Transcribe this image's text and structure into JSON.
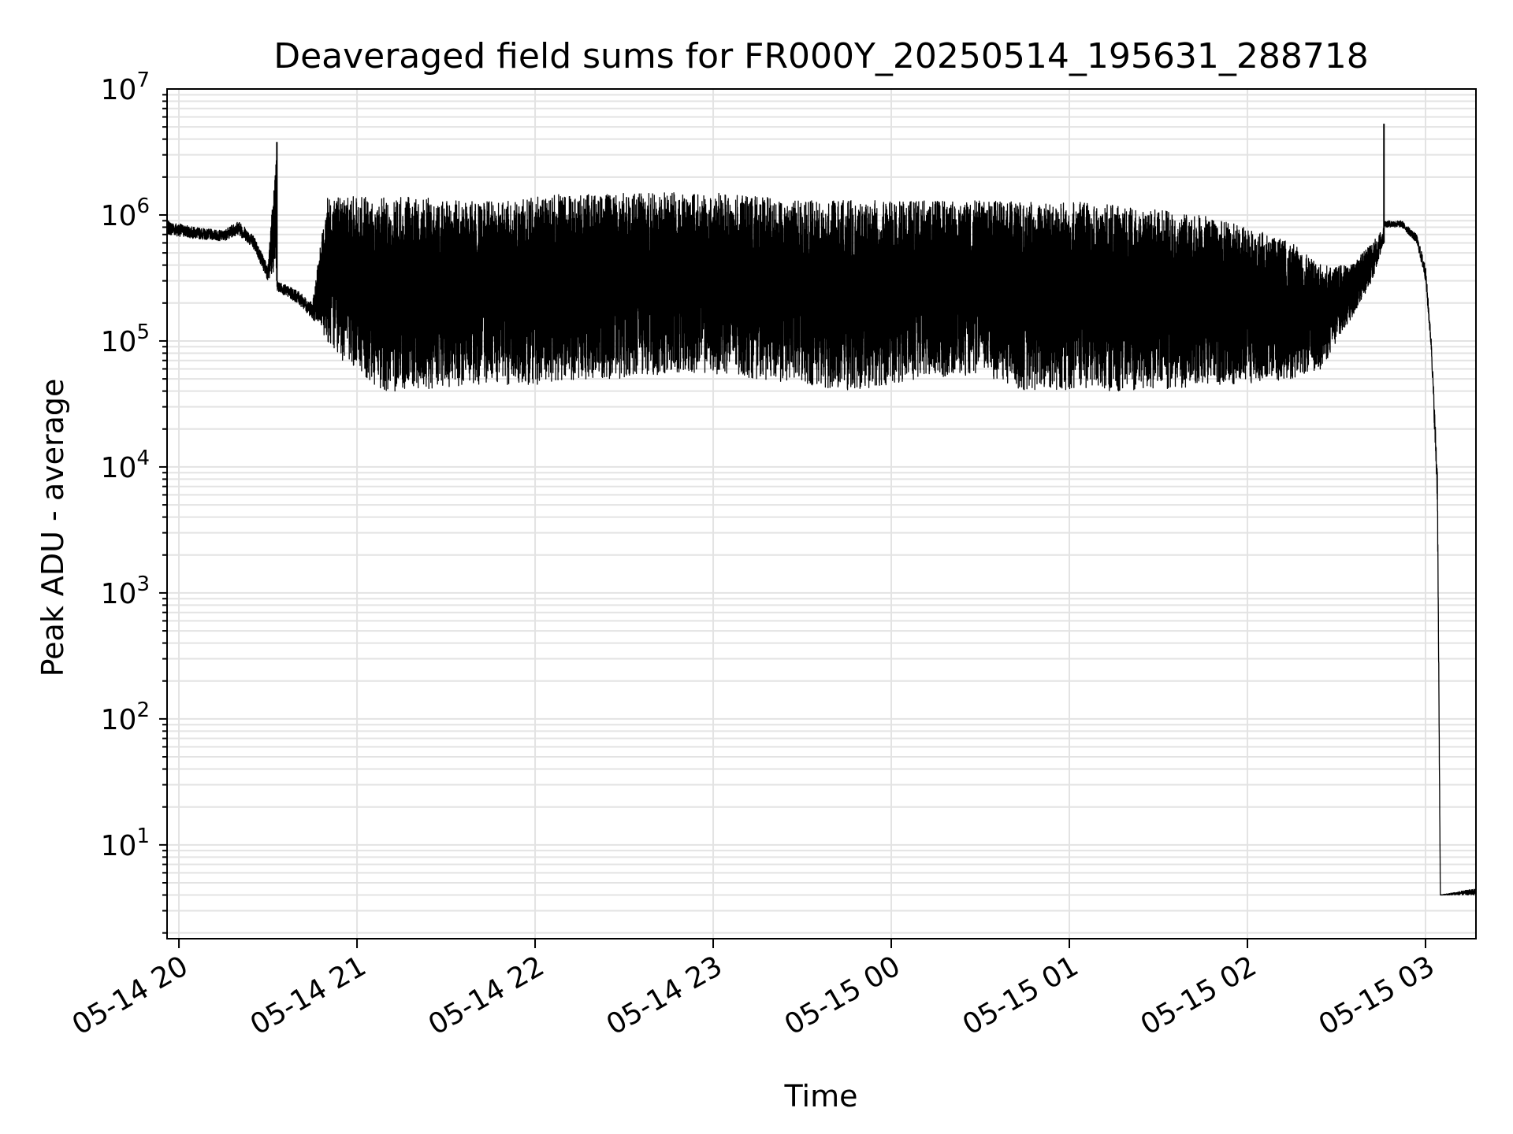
{
  "chart_data": {
    "type": "line",
    "title": "Deaveraged field sums for FR000Y_20250514_195631_288718",
    "xlabel": "Time",
    "ylabel": "Peak ADU - average",
    "y_scale": "log",
    "ylim": [
      1.8,
      10000000
    ],
    "xlim": [
      "2025-05-14 19:56",
      "2025-05-15 03:17"
    ],
    "grid": true,
    "line_color": "#000000",
    "grid_color": "#e3e3e3",
    "x_ticks": [
      "05-14 20",
      "05-14 21",
      "05-14 22",
      "05-14 23",
      "05-15 00",
      "05-15 01",
      "05-15 02",
      "05-15 03"
    ],
    "y_ticks": [
      {
        "base": "10",
        "exp": "1",
        "value": 10
      },
      {
        "base": "10",
        "exp": "2",
        "value": 100
      },
      {
        "base": "10",
        "exp": "3",
        "value": 1000
      },
      {
        "base": "10",
        "exp": "4",
        "value": 10000
      },
      {
        "base": "10",
        "exp": "5",
        "value": 100000
      },
      {
        "base": "10",
        "exp": "6",
        "value": 1000000
      },
      {
        "base": "10",
        "exp": "7",
        "value": 10000000
      }
    ],
    "series": [
      {
        "x": [
          "2025-05-14 19:56",
          "2025-05-14 20:05",
          "2025-05-14 20:15",
          "2025-05-14 20:20",
          "2025-05-14 20:25",
          "2025-05-14 20:30",
          "2025-05-14 20:33",
          "2025-05-14 20:33",
          "2025-05-14 20:33",
          "2025-05-14 20:40",
          "2025-05-14 20:45",
          "2025-05-14 20:50",
          "2025-05-14 20:55",
          "2025-05-14 21:00",
          "2025-05-14 21:05",
          "2025-05-14 21:10",
          "2025-05-14 21:20",
          "2025-05-14 21:30",
          "2025-05-14 21:40",
          "2025-05-14 21:50",
          "2025-05-14 22:00",
          "2025-05-14 22:15",
          "2025-05-14 22:30",
          "2025-05-14 22:45",
          "2025-05-14 23:00",
          "2025-05-14 23:15",
          "2025-05-14 23:30",
          "2025-05-14 23:45",
          "2025-05-15 00:00",
          "2025-05-15 00:15",
          "2025-05-15 00:30",
          "2025-05-15 00:45",
          "2025-05-15 01:00",
          "2025-05-15 01:15",
          "2025-05-15 01:30",
          "2025-05-15 01:45",
          "2025-05-15 02:00",
          "2025-05-15 02:15",
          "2025-05-15 02:25",
          "2025-05-15 02:35",
          "2025-05-15 02:42",
          "2025-05-15 02:46",
          "2025-05-15 02:46",
          "2025-05-15 02:46",
          "2025-05-15 02:52",
          "2025-05-15 02:57",
          "2025-05-15 03:00",
          "2025-05-15 03:02",
          "2025-05-15 03:04",
          "2025-05-15 03:05",
          "2025-05-15 03:17"
        ],
        "upper": [
          900000,
          800000,
          750000,
          900000,
          700000,
          400000,
          3800000,
          300000,
          300000,
          250000,
          200000,
          1400000,
          1400000,
          1400000,
          1400000,
          1400000,
          1400000,
          1300000,
          1300000,
          1300000,
          1400000,
          1500000,
          1500000,
          1500000,
          1500000,
          1400000,
          1300000,
          1300000,
          1300000,
          1300000,
          1300000,
          1300000,
          1300000,
          1200000,
          1100000,
          1000000,
          800000,
          600000,
          400000,
          400000,
          600000,
          800000,
          5300000,
          900000,
          900000,
          700000,
          400000,
          100000,
          10000,
          4,
          4.5
        ],
        "lower": [
          700000,
          650000,
          620000,
          700000,
          550000,
          300000,
          300000,
          150000,
          250000,
          200000,
          150000,
          100000,
          70000,
          60000,
          45000,
          40000,
          40000,
          40000,
          45000,
          45000,
          45000,
          50000,
          50000,
          55000,
          55000,
          50000,
          45000,
          40000,
          45000,
          50000,
          55000,
          40000,
          40000,
          40000,
          40000,
          45000,
          45000,
          50000,
          60000,
          150000,
          300000,
          600000,
          600000,
          800000,
          800000,
          600000,
          300000,
          80000,
          5000,
          4,
          4
        ]
      }
    ]
  }
}
